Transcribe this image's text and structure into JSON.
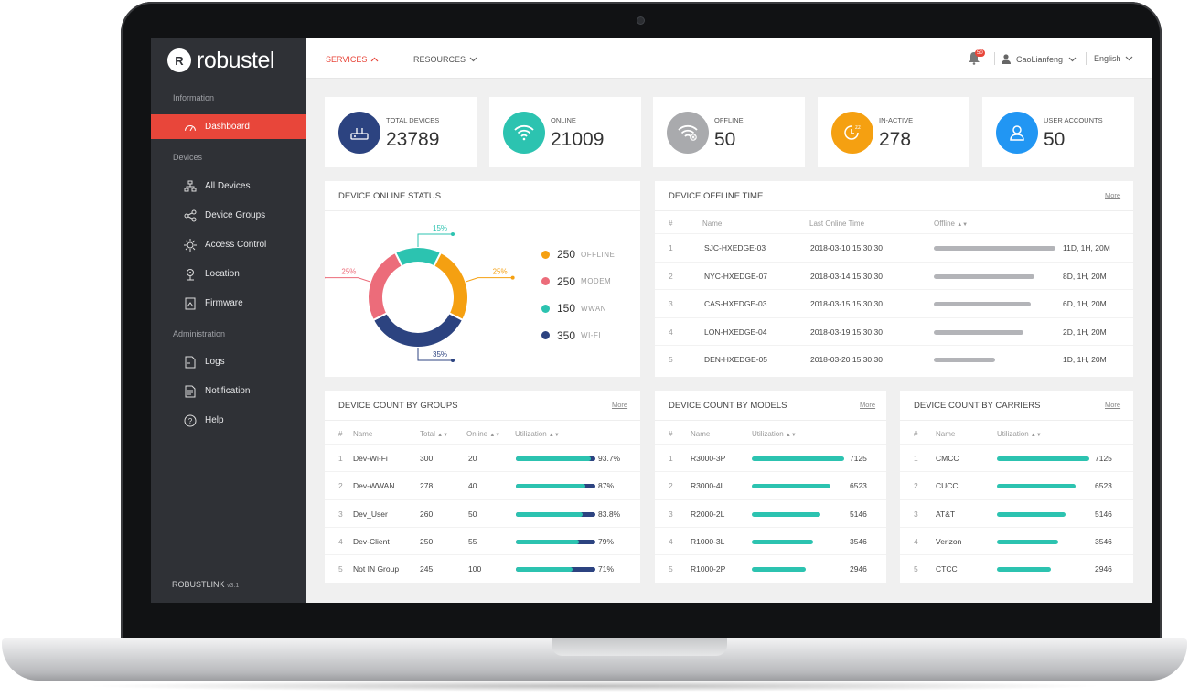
{
  "brand": {
    "logo_mark": "R",
    "logo_text": "robustel",
    "footer_name": "ROBUSTLINK",
    "footer_version": "v3.1"
  },
  "sidebar": {
    "sections": [
      "Information",
      "Devices",
      "Administration"
    ],
    "items": [
      {
        "label": "Dashboard",
        "icon": "dashboard-gauge-icon"
      },
      {
        "label": "All Devices",
        "icon": "network-devices-icon"
      },
      {
        "label": "Device Groups",
        "icon": "share-nodes-icon"
      },
      {
        "label": "Access Control",
        "icon": "gear-sun-icon"
      },
      {
        "label": "Location",
        "icon": "location-pin-icon"
      },
      {
        "label": "Firmware",
        "icon": "firmware-file-icon"
      },
      {
        "label": "Logs",
        "icon": "log-file-icon"
      },
      {
        "label": "Notification",
        "icon": "notification-doc-icon"
      },
      {
        "label": "Help",
        "icon": "help-circle-icon"
      }
    ]
  },
  "topbar": {
    "nav": [
      "SERVICES",
      "RESOURCES"
    ],
    "notification_count": "50",
    "user": "CaoLianfeng",
    "language": "English"
  },
  "stats": [
    {
      "label": "TOTAL DEVICES",
      "value": "23789",
      "color": "#2c4380",
      "icon": "router-icon"
    },
    {
      "label": "ONLINE",
      "value": "21009",
      "color": "#2cc3b0",
      "icon": "wifi-icon"
    },
    {
      "label": "OFFLINE",
      "value": "50",
      "color": "#a9aaad",
      "icon": "wifi-off-icon"
    },
    {
      "label": "IN-ACTIVE",
      "value": "278",
      "color": "#f5a011",
      "icon": "sleep-clock-icon"
    },
    {
      "label": "USER ACCOUNTS",
      "value": "50",
      "color": "#2196f3",
      "icon": "user-icon"
    }
  ],
  "online_status": {
    "title": "DEVICE ONLINE STATUS",
    "legend": [
      {
        "value": "250",
        "label": "OFFLINE",
        "color": "#f5a011"
      },
      {
        "value": "250",
        "label": "MODEM",
        "color": "#ec6c7a"
      },
      {
        "value": "150",
        "label": "WWAN",
        "color": "#2cc3b0"
      },
      {
        "value": "350",
        "label": "WI-FI",
        "color": "#2c4380"
      }
    ],
    "callouts": [
      "15%",
      "25%",
      "25%",
      "35%"
    ]
  },
  "chart_data": {
    "type": "pie",
    "title": "DEVICE ONLINE STATUS",
    "categories": [
      "OFFLINE",
      "MODEM",
      "WWAN",
      "WI-FI"
    ],
    "values": [
      250,
      250,
      150,
      350
    ],
    "percent_labels": [
      "25%",
      "25%",
      "15%",
      "35%"
    ],
    "colors": [
      "#f5a011",
      "#ec6c7a",
      "#2cc3b0",
      "#2c4380"
    ],
    "legend": "right"
  },
  "offline_time": {
    "title": "DEVICE OFFLINE TIME",
    "more": "More",
    "headers": [
      "#",
      "Name",
      "Last Online Time",
      "Offline"
    ],
    "rows": [
      {
        "n": "1",
        "name": "SJC-HXEDGE-03",
        "time": "2018-03-10 15:30:30",
        "offline": "11D, 1H, 20M",
        "level": 1.0
      },
      {
        "n": "2",
        "name": "NYC-HXEDGE-07",
        "time": "2018-03-14 15:30:30",
        "offline": "8D, 1H, 20M",
        "level": 0.83
      },
      {
        "n": "3",
        "name": "CAS-HXEDGE-03",
        "time": "2018-03-15 15:30:30",
        "offline": "6D, 1H, 20M",
        "level": 0.8
      },
      {
        "n": "4",
        "name": "LON-HXEDGE-04",
        "time": "2018-03-19 15:30:30",
        "offline": "2D, 1H, 20M",
        "level": 0.74
      },
      {
        "n": "5",
        "name": "DEN-HXEDGE-05",
        "time": "2018-03-20 15:30:30",
        "offline": "1D, 1H, 20M",
        "level": 0.5
      }
    ]
  },
  "groups": {
    "title": "DEVICE COUNT BY GROUPS",
    "more": "More",
    "headers": [
      "#",
      "Name",
      "Total",
      "Online",
      "Utilization"
    ],
    "rows": [
      {
        "n": "1",
        "name": "Dev-Wi-Fi",
        "total": "300",
        "online": "20",
        "pct": "93.7%",
        "level": 0.937
      },
      {
        "n": "2",
        "name": "Dev-WWAN",
        "total": "278",
        "online": "40",
        "pct": "87%",
        "level": 0.87
      },
      {
        "n": "3",
        "name": "Dev_User",
        "total": "260",
        "online": "50",
        "pct": "83.8%",
        "level": 0.838
      },
      {
        "n": "4",
        "name": "Dev-Client",
        "total": "250",
        "online": "55",
        "pct": "79%",
        "level": 0.79
      },
      {
        "n": "5",
        "name": "Not IN Group",
        "total": "245",
        "online": "100",
        "pct": "71%",
        "level": 0.71
      }
    ]
  },
  "models": {
    "title": "DEVICE COUNT BY MODELS",
    "more": "More",
    "headers": [
      "#",
      "Name",
      "Utilization"
    ],
    "rows": [
      {
        "n": "1",
        "name": "R3000-3P",
        "value": "7125",
        "level": 1.0
      },
      {
        "n": "2",
        "name": "R3000-4L",
        "value": "6523",
        "level": 0.85
      },
      {
        "n": "3",
        "name": "R2000-2L",
        "value": "5146",
        "level": 0.74
      },
      {
        "n": "4",
        "name": "R1000-3L",
        "value": "3546",
        "level": 0.66
      },
      {
        "n": "5",
        "name": "R1000-2P",
        "value": "2946",
        "level": 0.58
      }
    ]
  },
  "carriers": {
    "title": "DEVICE COUNT BY CARRIERS",
    "more": "More",
    "headers": [
      "#",
      "Name",
      "Utilization"
    ],
    "rows": [
      {
        "n": "1",
        "name": "CMCC",
        "value": "7125",
        "level": 1.0
      },
      {
        "n": "2",
        "name": "CUCC",
        "value": "6523",
        "level": 0.85
      },
      {
        "n": "3",
        "name": "AT&T",
        "value": "5146",
        "level": 0.74
      },
      {
        "n": "4",
        "name": "Verizon",
        "value": "3546",
        "level": 0.66
      },
      {
        "n": "5",
        "name": "CTCC",
        "value": "2946",
        "level": 0.58
      }
    ]
  },
  "colors": {
    "accent": "#e8463a",
    "teal": "#2cc3b0",
    "navy": "#2c4380",
    "grey_bar": "#b3b4b8"
  }
}
